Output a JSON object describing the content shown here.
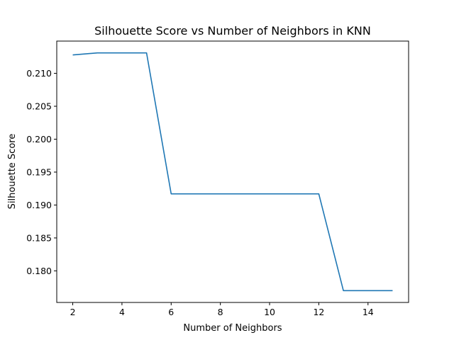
{
  "chart_data": {
    "type": "line",
    "title": "Silhouette Score vs Number of Neighbors in KNN",
    "xlabel": "Number of Neighbors",
    "ylabel": "Silhouette Score",
    "x": [
      2,
      3,
      4,
      5,
      6,
      7,
      8,
      9,
      10,
      11,
      12,
      13,
      14,
      15
    ],
    "series": [
      {
        "values": [
          0.2128,
          0.2131,
          0.2131,
          0.2131,
          0.1917,
          0.1917,
          0.1917,
          0.1917,
          0.1917,
          0.1917,
          0.1917,
          0.177,
          0.177,
          0.177
        ],
        "color": "#1f77b4"
      }
    ],
    "xlim": [
      1.35,
      15.65
    ],
    "ylim": [
      0.1752,
      0.2149
    ],
    "xticks": [
      2,
      4,
      6,
      8,
      10,
      12,
      14
    ],
    "xtick_labels": [
      "2",
      "4",
      "6",
      "8",
      "10",
      "12",
      "14"
    ],
    "yticks": [
      0.18,
      0.185,
      0.19,
      0.195,
      0.2,
      0.205,
      0.21
    ],
    "ytick_labels": [
      "0.180",
      "0.185",
      "0.190",
      "0.195",
      "0.200",
      "0.205",
      "0.210"
    ],
    "grid": false,
    "legend": false
  }
}
